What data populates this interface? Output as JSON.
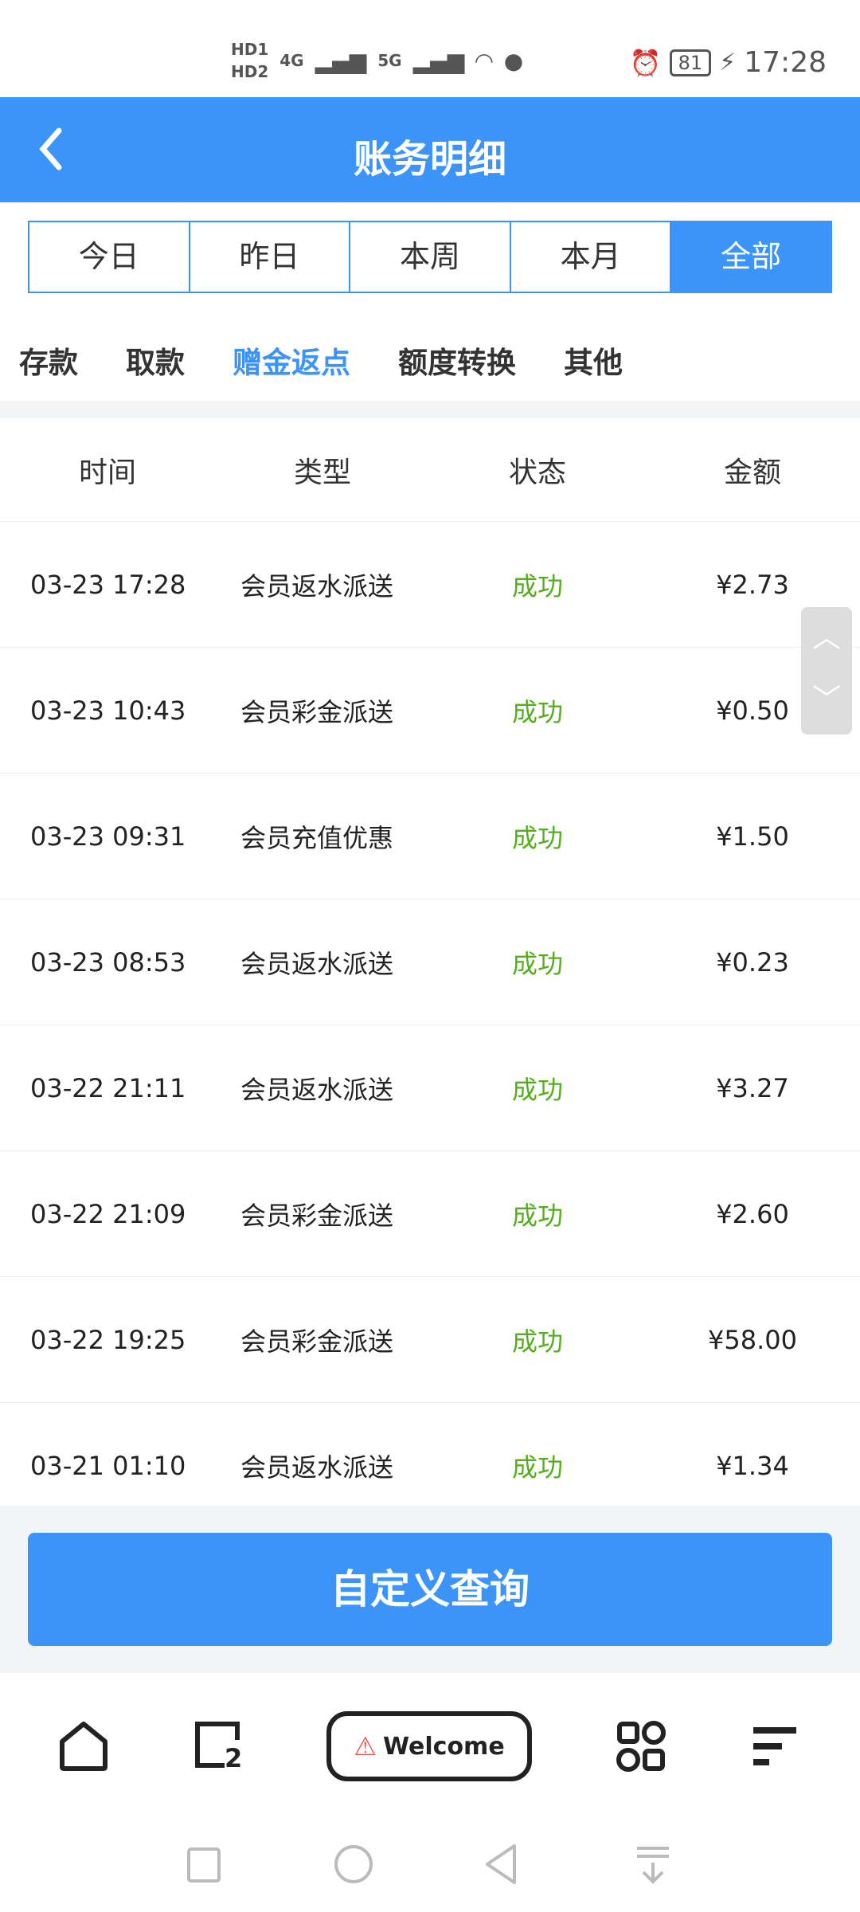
{
  "status_bar": {
    "sim1": "HD1",
    "sim2": "HD2",
    "net1": "4G",
    "net2": "5G",
    "battery": "81",
    "time": "17:28"
  },
  "header": {
    "title": "账务明细"
  },
  "filters": [
    "今日",
    "昨日",
    "本周",
    "本月",
    "全部"
  ],
  "selected_filter": "全部",
  "categories": [
    "存款",
    "取款",
    "赠金返点",
    "额度转换",
    "其他"
  ],
  "selected_category": "赠金返点",
  "table": {
    "headers": [
      "时间",
      "类型",
      "状态",
      "金额"
    ],
    "rows": [
      {
        "time": "03-23 17:28",
        "type": "会员返水派送",
        "status": "成功",
        "amount": "¥2.73"
      },
      {
        "time": "03-23 10:43",
        "type": "会员彩金派送",
        "status": "成功",
        "amount": "¥0.50"
      },
      {
        "time": "03-23 09:31",
        "type": "会员充值优惠",
        "status": "成功",
        "amount": "¥1.50"
      },
      {
        "time": "03-23 08:53",
        "type": "会员返水派送",
        "status": "成功",
        "amount": "¥0.23"
      },
      {
        "time": "03-22 21:11",
        "type": "会员返水派送",
        "status": "成功",
        "amount": "¥3.27"
      },
      {
        "time": "03-22 21:09",
        "type": "会员彩金派送",
        "status": "成功",
        "amount": "¥2.60"
      },
      {
        "time": "03-22 19:25",
        "type": "会员彩金派送",
        "status": "成功",
        "amount": "¥58.00"
      },
      {
        "time": "03-21 01:10",
        "type": "会员返水派送",
        "status": "成功",
        "amount": "¥1.34"
      }
    ]
  },
  "query_button": "自定义查询",
  "bottom_nav": {
    "welcome": "Welcome",
    "tabs_count": "2"
  },
  "colors": {
    "primary": "#3c93f8",
    "success": "#52b01a"
  }
}
